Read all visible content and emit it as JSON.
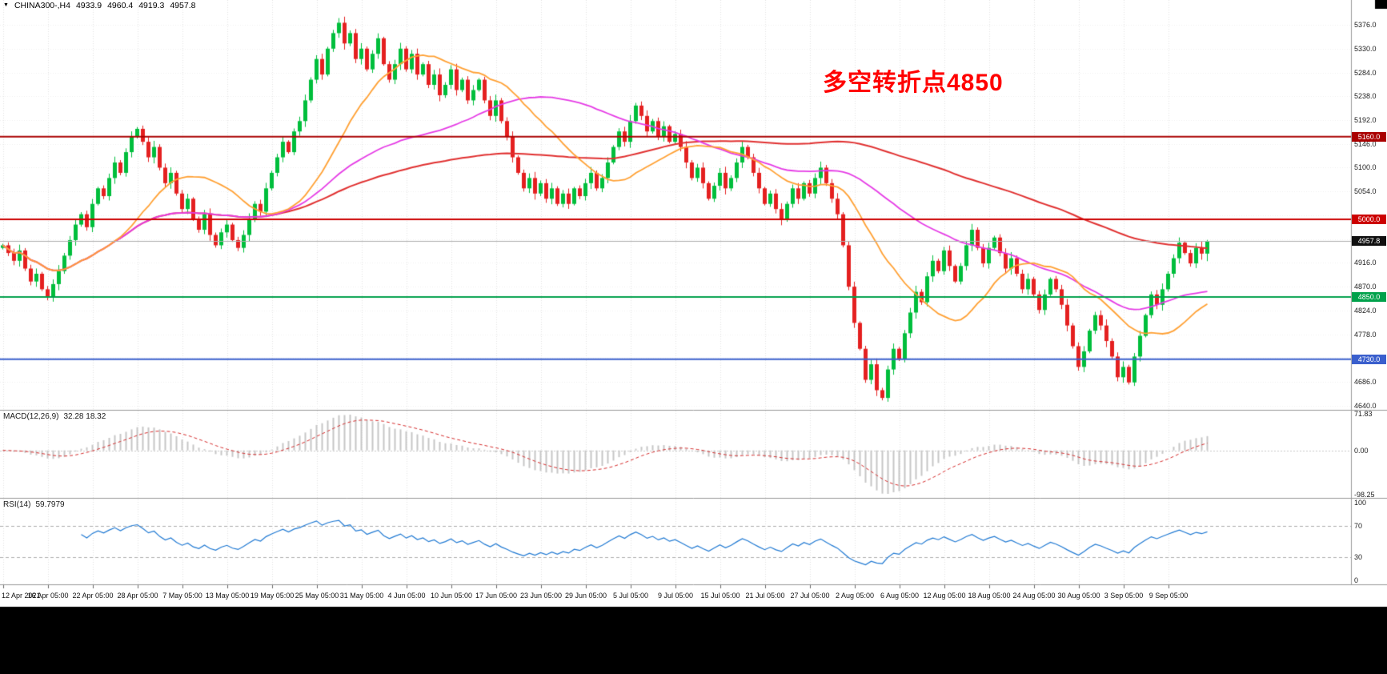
{
  "header": {
    "dropdown_icon": "▼",
    "symbol": "CHINA300-,H4",
    "open": "4933.9",
    "high": "4960.4",
    "low": "4919.3",
    "close": "4957.8"
  },
  "annotation": {
    "text": "多空转折点4850",
    "color": "#FF0000"
  },
  "macd_panel": {
    "label": "MACD(12,26,9)",
    "values": "32.28 18.32",
    "axis_labels": [
      "71.83",
      "0.00",
      "-98.25"
    ]
  },
  "rsi_panel": {
    "label": "RSI(14)",
    "value": "59.7979",
    "axis_labels": [
      "100",
      "70",
      "30",
      "0"
    ]
  },
  "price_axis": {
    "visible_tick_labels": [
      "5376.0",
      "5330.0",
      "5284.0",
      "5238.0",
      "5192.0",
      "5146.0",
      "5100.0",
      "5054.0",
      "4916.0",
      "4870.0",
      "4824.0",
      "4778.0",
      "4686.0",
      "4640.0"
    ],
    "badges": [
      {
        "label": "5160.0",
        "value": 5160.0,
        "color": "#AA0000"
      },
      {
        "label": "5000.0",
        "value": 5000.0,
        "color": "#CC0000"
      },
      {
        "label": "4957.8",
        "value": 4957.8,
        "color": "#101010"
      },
      {
        "label": "4850.0",
        "value": 4850.0,
        "color": "#00A14B"
      },
      {
        "label": "4730.0",
        "value": 4730.0,
        "color": "#3A5FCD"
      }
    ]
  },
  "chart_data": {
    "type": "candlestick",
    "symbol": "CHINA300-",
    "timeframe": "H4",
    "last_bar": {
      "open": 4933.9,
      "high": 4960.4,
      "low": 4919.3,
      "close": 4957.8
    },
    "first_open": 4945,
    "closes": [
      4950,
      4935,
      4920,
      4940,
      4905,
      4880,
      4895,
      4865,
      4850,
      4875,
      4900,
      4930,
      4960,
      4990,
      5010,
      4985,
      5030,
      5060,
      5045,
      5080,
      5110,
      5090,
      5130,
      5160,
      5175,
      5150,
      5120,
      5140,
      5100,
      5070,
      5090,
      5050,
      5020,
      5040,
      5000,
      4980,
      5010,
      4970,
      4950,
      4975,
      4990,
      4960,
      4945,
      4970,
      5000,
      5030,
      5015,
      5060,
      5090,
      5120,
      5150,
      5130,
      5170,
      5190,
      5230,
      5270,
      5310,
      5280,
      5330,
      5360,
      5380,
      5340,
      5360,
      5310,
      5330,
      5290,
      5320,
      5350,
      5300,
      5270,
      5300,
      5330,
      5290,
      5320,
      5280,
      5300,
      5260,
      5280,
      5240,
      5260,
      5290,
      5250,
      5270,
      5230,
      5250,
      5270,
      5230,
      5200,
      5230,
      5190,
      5160,
      5120,
      5090,
      5060,
      5080,
      5050,
      5070,
      5040,
      5060,
      5030,
      5050,
      5030,
      5060,
      5045,
      5070,
      5090,
      5060,
      5080,
      5110,
      5140,
      5170,
      5150,
      5190,
      5220,
      5200,
      5170,
      5190,
      5160,
      5180,
      5150,
      5165,
      5140,
      5110,
      5080,
      5100,
      5070,
      5040,
      5065,
      5090,
      5060,
      5080,
      5110,
      5140,
      5120,
      5090,
      5060,
      5030,
      5050,
      5020,
      5000,
      5030,
      5060,
      5040,
      5070,
      5050,
      5080,
      5100,
      5070,
      5040,
      5010,
      4950,
      4870,
      4800,
      4750,
      4690,
      4720,
      4670,
      4655,
      4710,
      4750,
      4730,
      4780,
      4820,
      4860,
      4840,
      4890,
      4920,
      4900,
      4940,
      4910,
      4880,
      4910,
      4950,
      4980,
      4945,
      4915,
      4945,
      4965,
      4935,
      4905,
      4925,
      4895,
      4865,
      4885,
      4855,
      4825,
      4855,
      4885,
      4865,
      4835,
      4795,
      4755,
      4715,
      4745,
      4785,
      4815,
      4795,
      4765,
      4735,
      4695,
      4715,
      4685,
      4735,
      4775,
      4815,
      4855,
      4835,
      4865,
      4895,
      4925,
      4955,
      4935,
      4915,
      4945,
      4933.9,
      4957.8
    ],
    "ylim": [
      4632,
      5424
    ],
    "price_ticks": [
      5376,
      5330,
      5284,
      5238,
      5192,
      5146,
      5100,
      5054,
      5008,
      4962,
      4916,
      4870,
      4824,
      4778,
      4732,
      4686,
      4640
    ],
    "hidden_ticks": [
      5008,
      4962,
      4732
    ],
    "bull_color": "#00BE3C",
    "bear_color": "#E42020",
    "overlays": [
      {
        "name": "ma-slow",
        "period": 110,
        "color": "#E03030",
        "width": 2
      },
      {
        "name": "ma-medium",
        "period": 50,
        "color": "#E53BE5",
        "width": 1.8
      },
      {
        "name": "ma-fast",
        "period": 20,
        "color": "#FFA033",
        "width": 1.8
      }
    ],
    "hlines": [
      {
        "value": 5160.0,
        "color": "#AA0000",
        "label": "5160.0"
      },
      {
        "value": 5000.0,
        "color": "#CC0000",
        "label": "5000.0"
      },
      {
        "value": 4850.0,
        "color": "#00A14B",
        "label": "4850.0"
      },
      {
        "value": 4730.0,
        "color": "#3A5FCD",
        "label": "4730.0"
      }
    ],
    "current_price": {
      "value": 4957.8,
      "label": "4957.8",
      "badge_color": "#101010",
      "line_color": "#AFAFAF"
    },
    "indicators": {
      "macd": {
        "params": [
          12,
          26,
          9
        ],
        "main": 32.28,
        "signal": 18.32,
        "axis": [
          71.83,
          0.0,
          -98.25
        ],
        "histogram_color": "#C6C6C6",
        "signal_color": "#D42A2A"
      },
      "rsi": {
        "params": [
          14
        ],
        "last": 59.7979,
        "axis": [
          100,
          70,
          30,
          0
        ],
        "levels": [
          70,
          30
        ],
        "line_color": "#1E78D2"
      }
    },
    "x_labels": [
      "12 Apr 2021",
      "16 Apr 05:00",
      "22 Apr 05:00",
      "28 Apr 05:00",
      "7 May 05:00",
      "13 May 05:00",
      "19 May 05:00",
      "25 May 05:00",
      "31 May 05:00",
      "4 Jun 05:00",
      "10 Jun 05:00",
      "17 Jun 05:00",
      "23 Jun 05:00",
      "29 Jun 05:00",
      "5 Jul 05:00",
      "9 Jul 05:00",
      "15 Jul 05:00",
      "21 Jul 05:00",
      "27 Jul 05:00",
      "2 Aug 05:00",
      "6 Aug 05:00",
      "12 Aug 05:00",
      "18 Aug 05:00",
      "24 Aug 05:00",
      "30 Aug 05:00",
      "3 Sep 05:00",
      "9 Sep 05:00"
    ],
    "bars_per_label": 8
  }
}
